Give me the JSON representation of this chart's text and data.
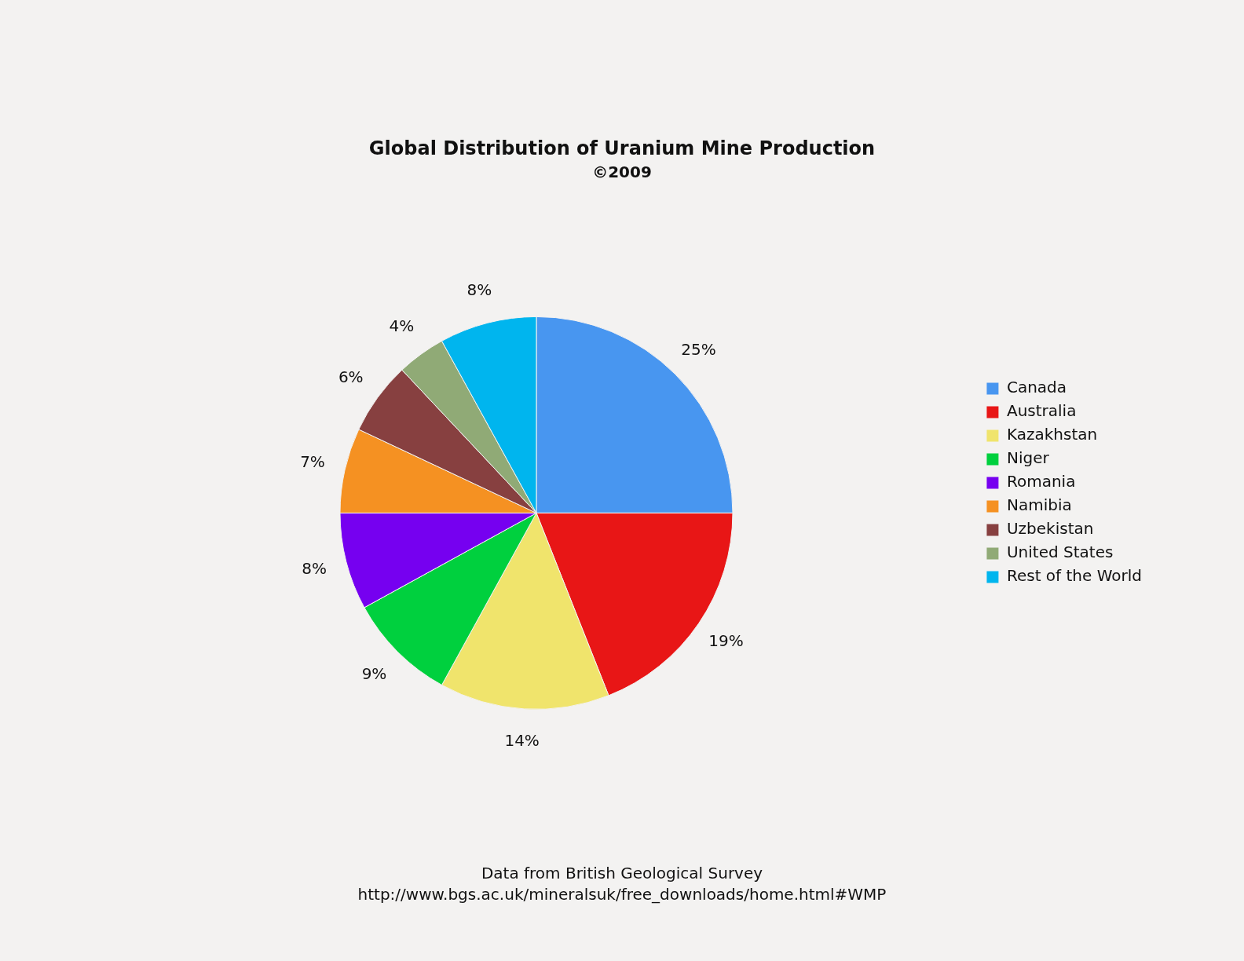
{
  "chart_data": {
    "type": "pie",
    "title": "Global Distribution of Uranium Mine Production",
    "subtitle": "©2009",
    "categories": [
      "Canada",
      "Australia",
      "Kazakhstan",
      "Niger",
      "Romania",
      "Namibia",
      "Uzbekistan",
      "United States",
      "Rest of the World"
    ],
    "values": [
      25,
      19,
      14,
      9,
      8,
      7,
      6,
      4,
      8
    ],
    "value_labels": [
      "25%",
      "19%",
      "14%",
      "9%",
      "8%",
      "7%",
      "6%",
      "4%",
      "8%"
    ],
    "colors": [
      "#4896f0",
      "#e81616",
      "#f0e46c",
      "#00d03e",
      "#7600f0",
      "#f59122",
      "#874040",
      "#90aa76",
      "#00b5ee"
    ],
    "legend": "right",
    "annotations": [
      "Data from British Geological Survey",
      "http://www.bgs.ac.uk/mineralsuk/free_downloads/home.html#WMP"
    ]
  }
}
